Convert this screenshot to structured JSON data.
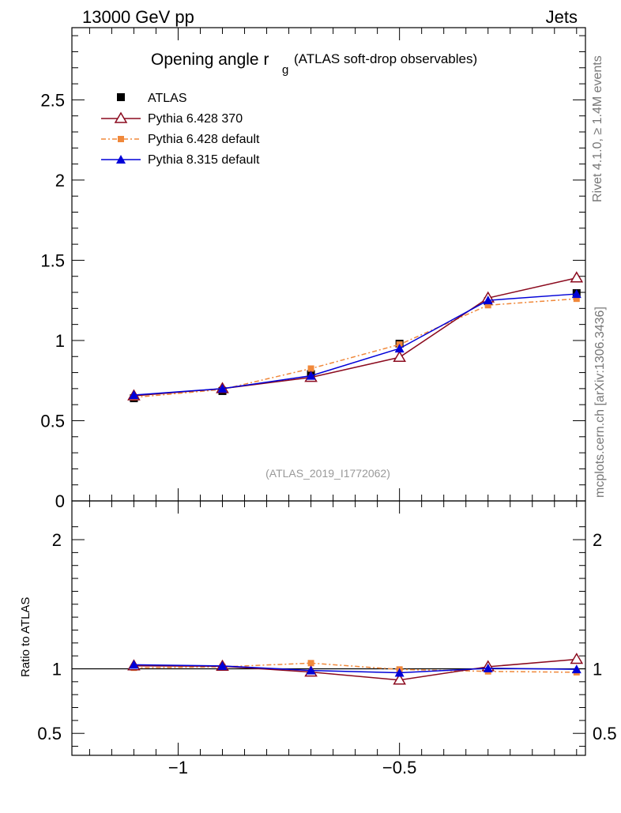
{
  "header": {
    "left_label": "13000 GeV pp",
    "right_label": "Jets"
  },
  "side_labels": {
    "rivet": "Rivet 4.1.0, ≥ 1.4M events",
    "mcplots": "mcplots.cern.ch [arXiv:1306.3436]"
  },
  "colors": {
    "atlas": "#000000",
    "pythia6_370": "#8b0a1e",
    "pythia6_default": "#f0883a",
    "pythia8": "#0000d8",
    "analysis_text": "#999999",
    "side_text": "#777777"
  },
  "chart_data": [
    {
      "type": "line",
      "title_main": "Opening angle r",
      "title_sub": "g",
      "title_suffix": "(ATLAS soft-drop observables)",
      "analysis_id": "(ATLAS_2019_I1772062)",
      "xlabel": "",
      "ylabel": "",
      "xlim": [
        -1.24,
        -0.08
      ],
      "ylim": [
        0,
        2.95
      ],
      "yticks": [
        0,
        0.5,
        1,
        1.5,
        2,
        2.5
      ],
      "ytick_labels": [
        "0",
        "0.5",
        "1",
        "1.5",
        "2",
        "2.5"
      ],
      "x": [
        -1.1,
        -0.9,
        -0.7,
        -0.5,
        -0.3,
        -0.1
      ],
      "series": [
        {
          "name": "ATLAS",
          "key": "atlas",
          "values": [
            0.64,
            0.685,
            0.79,
            0.98,
            1.245,
            1.295
          ]
        },
        {
          "name": "Pythia 6.428 370",
          "key": "pythia6_370",
          "values": [
            0.655,
            0.7,
            0.77,
            0.895,
            1.265,
            1.39
          ]
        },
        {
          "name": "Pythia 6.428 default",
          "key": "pythia6_default",
          "values": [
            0.645,
            0.695,
            0.825,
            0.975,
            1.22,
            1.26
          ]
        },
        {
          "name": "Pythia 8.315 default",
          "key": "pythia8",
          "values": [
            0.66,
            0.7,
            0.78,
            0.95,
            1.25,
            1.29
          ]
        }
      ]
    },
    {
      "type": "line",
      "title": "",
      "ylabel": "Ratio to ATLAS",
      "xlim": [
        -1.24,
        -0.08
      ],
      "ylim": [
        0.33,
        2.3
      ],
      "xticks": [
        -1,
        -0.5
      ],
      "xtick_labels": [
        "−1",
        "−0.5"
      ],
      "yticks": [
        0.5,
        1,
        2
      ],
      "ytick_labels": [
        "0.5",
        "1",
        "2"
      ],
      "x": [
        -1.1,
        -0.9,
        -0.7,
        -0.5,
        -0.3,
        -0.1
      ],
      "series": [
        {
          "name": "Pythia 6.428 370",
          "key": "pythia6_370",
          "values": [
            1.023,
            1.02,
            0.975,
            0.913,
            1.016,
            1.073
          ]
        },
        {
          "name": "Pythia 6.428 default",
          "key": "pythia6_default",
          "values": [
            1.008,
            1.015,
            1.044,
            0.995,
            0.98,
            0.973
          ]
        },
        {
          "name": "Pythia 8.315 default",
          "key": "pythia8",
          "values": [
            1.031,
            1.022,
            0.987,
            0.969,
            1.004,
            0.996
          ]
        }
      ]
    }
  ]
}
